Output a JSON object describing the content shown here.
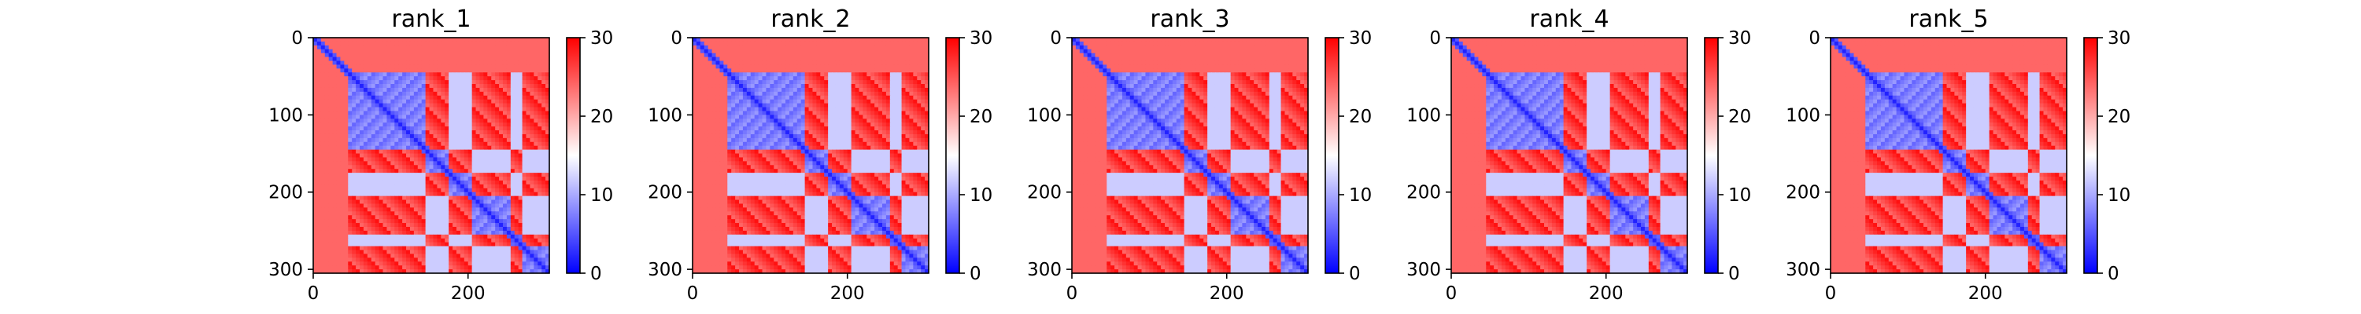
{
  "chart_data": [
    {
      "type": "heatmap",
      "title": "rank_1",
      "xlim": [
        0,
        305
      ],
      "ylim": [
        305,
        0
      ],
      "xticks": [
        "0",
        "200"
      ],
      "yticks": [
        "0",
        "100",
        "200",
        "300"
      ],
      "colorbar": {
        "range": [
          0,
          30
        ],
        "ticks": [
          "0",
          "10",
          "20",
          "30"
        ],
        "colors": [
          "#0000ff",
          "#ffffff",
          "#ff0000"
        ]
      }
    },
    {
      "type": "heatmap",
      "title": "rank_2",
      "xlim": [
        0,
        305
      ],
      "ylim": [
        305,
        0
      ],
      "xticks": [
        "0",
        "200"
      ],
      "yticks": [
        "0",
        "100",
        "200",
        "300"
      ],
      "colorbar": {
        "range": [
          0,
          30
        ],
        "ticks": [
          "0",
          "10",
          "20",
          "30"
        ],
        "colors": [
          "#0000ff",
          "#ffffff",
          "#ff0000"
        ]
      }
    },
    {
      "type": "heatmap",
      "title": "rank_3",
      "xlim": [
        0,
        305
      ],
      "ylim": [
        305,
        0
      ],
      "xticks": [
        "0",
        "200"
      ],
      "yticks": [
        "0",
        "100",
        "200",
        "300"
      ],
      "colorbar": {
        "range": [
          0,
          30
        ],
        "ticks": [
          "0",
          "10",
          "20",
          "30"
        ],
        "colors": [
          "#0000ff",
          "#ffffff",
          "#ff0000"
        ]
      }
    },
    {
      "type": "heatmap",
      "title": "rank_4",
      "xlim": [
        0,
        305
      ],
      "ylim": [
        305,
        0
      ],
      "xticks": [
        "0",
        "200"
      ],
      "yticks": [
        "0",
        "100",
        "200",
        "300"
      ],
      "colorbar": {
        "range": [
          0,
          30
        ],
        "ticks": [
          "0",
          "10",
          "20",
          "30"
        ],
        "colors": [
          "#0000ff",
          "#ffffff",
          "#ff0000"
        ]
      }
    },
    {
      "type": "heatmap",
      "title": "rank_5",
      "xlim": [
        0,
        305
      ],
      "ylim": [
        305,
        0
      ],
      "xticks": [
        "0",
        "200"
      ],
      "yticks": [
        "0",
        "100",
        "200",
        "300"
      ],
      "colorbar": {
        "range": [
          0,
          30
        ],
        "ticks": [
          "0",
          "10",
          "20",
          "30"
        ],
        "colors": [
          "#0000ff",
          "#ffffff",
          "#ff0000"
        ]
      }
    }
  ]
}
